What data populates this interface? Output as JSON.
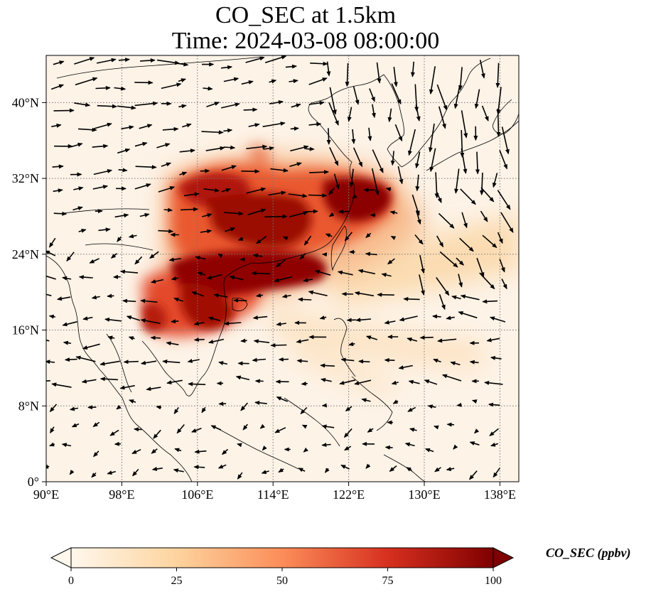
{
  "title": "CO_SEC at 1.5km",
  "subtitle": "Time: 2024-03-08 08:00:00",
  "map": {
    "variable": "CO_SEC",
    "level": "1.5km",
    "lon_range": [
      90,
      140
    ],
    "lat_range": [
      0,
      44
    ],
    "x_ticks": [
      "90°E",
      "98°E",
      "106°E",
      "114°E",
      "122°E",
      "130°E",
      "138°E"
    ],
    "y_ticks": [
      "0°",
      "8°N",
      "16°N",
      "24°N",
      "32°N",
      "40°N"
    ],
    "gridlines": "dotted",
    "colormap": "OrRd",
    "vectors": "wind arrows"
  },
  "colorbar": {
    "label": "CO_SEC (ppbv)",
    "ticks": [
      "0",
      "25",
      "50",
      "75",
      "100"
    ],
    "min": 0,
    "max": 100,
    "extend": "both",
    "colors": [
      "#fff7ec",
      "#fdd49e",
      "#fc8d59",
      "#d7301f",
      "#7f0000"
    ]
  }
}
